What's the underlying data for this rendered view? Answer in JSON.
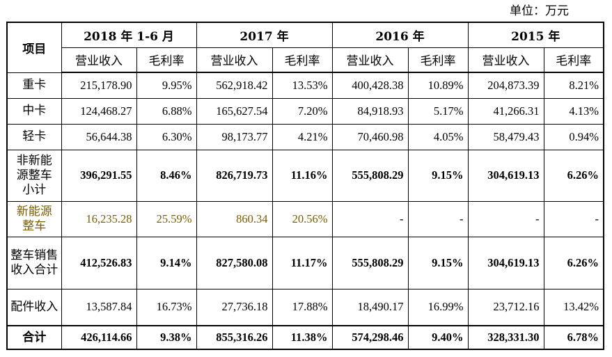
{
  "unit_label": "单位：万元",
  "header": {
    "item": "项目",
    "periods": [
      "2018 年 1-6 月",
      "2017 年",
      "2016 年",
      "2015 年"
    ],
    "sub_revenue": "营业收入",
    "sub_margin": "毛利率"
  },
  "rows": [
    {
      "label": "重卡",
      "bold": false,
      "values": [
        "215,178.90",
        "9.95%",
        "562,918.42",
        "13.53%",
        "400,428.38",
        "10.89%",
        "204,873.39",
        "8.21%"
      ]
    },
    {
      "label": "中卡",
      "bold": false,
      "values": [
        "124,468.27",
        "6.88%",
        "165,627.54",
        "7.20%",
        "84,918.93",
        "5.17%",
        "41,266.31",
        "4.13%"
      ]
    },
    {
      "label": "轻卡",
      "bold": false,
      "values": [
        "56,644.38",
        "6.30%",
        "98,173.77",
        "4.21%",
        "70,460.98",
        "4.05%",
        "58,479.43",
        "0.94%"
      ]
    },
    {
      "label": "非新能源整车小计",
      "bold": true,
      "values": [
        "396,291.55",
        "8.46%",
        "826,719.73",
        "11.16%",
        "555,808.29",
        "9.15%",
        "304,619.13",
        "6.26%"
      ]
    },
    {
      "label": "新能源整车",
      "bold": false,
      "highlight": true,
      "values": [
        "16,235.28",
        "25.59%",
        "860.34",
        "20.56%",
        "-",
        "-",
        "-",
        "-"
      ]
    },
    {
      "label": "整车销售收入合计",
      "bold": true,
      "values": [
        "412,526.83",
        "9.14%",
        "827,580.08",
        "11.17%",
        "555,808.29",
        "9.15%",
        "304,619.13",
        "6.26%"
      ]
    },
    {
      "label": "配件收入",
      "bold": false,
      "values": [
        "13,587.84",
        "16.73%",
        "27,736.18",
        "17.88%",
        "18,490.17",
        "16.99%",
        "23,712.16",
        "13.42%"
      ]
    },
    {
      "label": "合计",
      "bold": true,
      "total": true,
      "values": [
        "426,114.66",
        "9.38%",
        "855,316.26",
        "11.38%",
        "574,298.46",
        "9.40%",
        "328,331.30",
        "6.78%"
      ]
    }
  ]
}
